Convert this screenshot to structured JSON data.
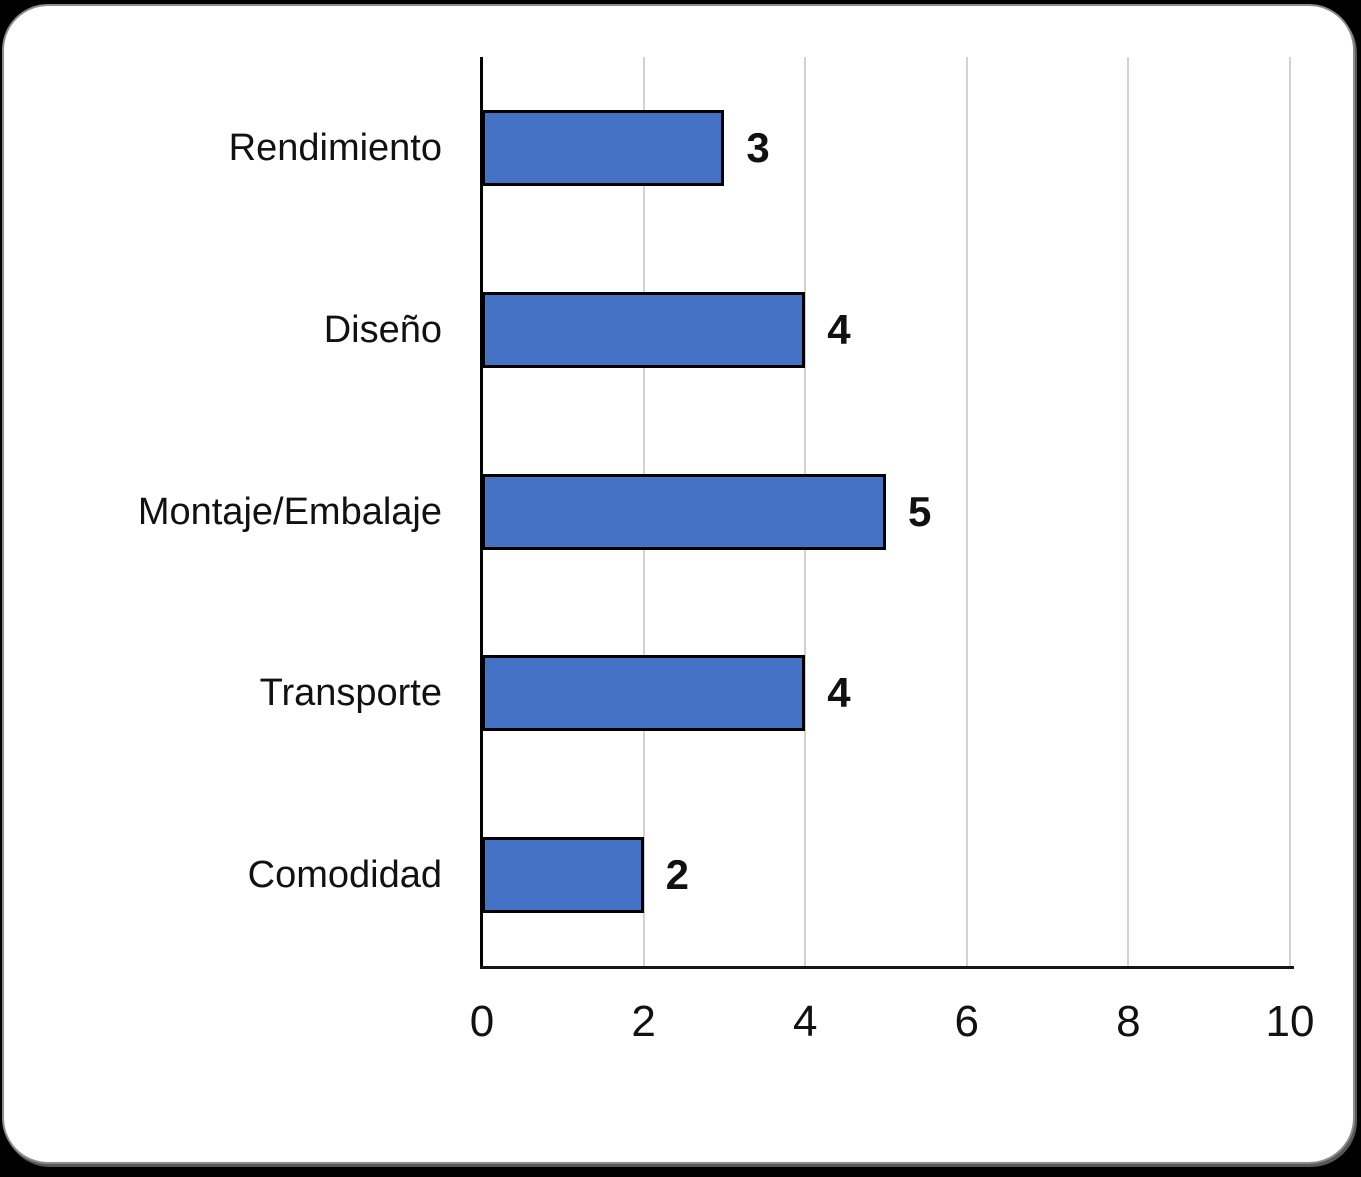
{
  "page": {
    "background": "#000000"
  },
  "card": {
    "background": "#FFFFFF",
    "border_color": "#8C8C8C"
  },
  "chart_data": {
    "type": "bar",
    "orientation": "horizontal",
    "title": "",
    "xlabel": "",
    "ylabel": "",
    "categories": [
      "Rendimiento",
      "Diseño",
      "Montaje/Embalaje",
      "Transporte",
      "Comodidad"
    ],
    "values": [
      3,
      4,
      5,
      4,
      2
    ],
    "data_labels": [
      "3",
      "4",
      "5",
      "4",
      "2"
    ],
    "xlim": [
      0,
      10
    ],
    "xticks": [
      0,
      2,
      4,
      6,
      8,
      10
    ],
    "xtick_labels": [
      "0",
      "2",
      "4",
      "6",
      "8",
      "10"
    ],
    "grid": "vertical-only",
    "legend": "none",
    "colors": {
      "bar_fill": "#4472C4",
      "bar_border": "#000000",
      "gridline": "#D2D2D2",
      "axis": "#000000",
      "text": "#111111"
    }
  }
}
